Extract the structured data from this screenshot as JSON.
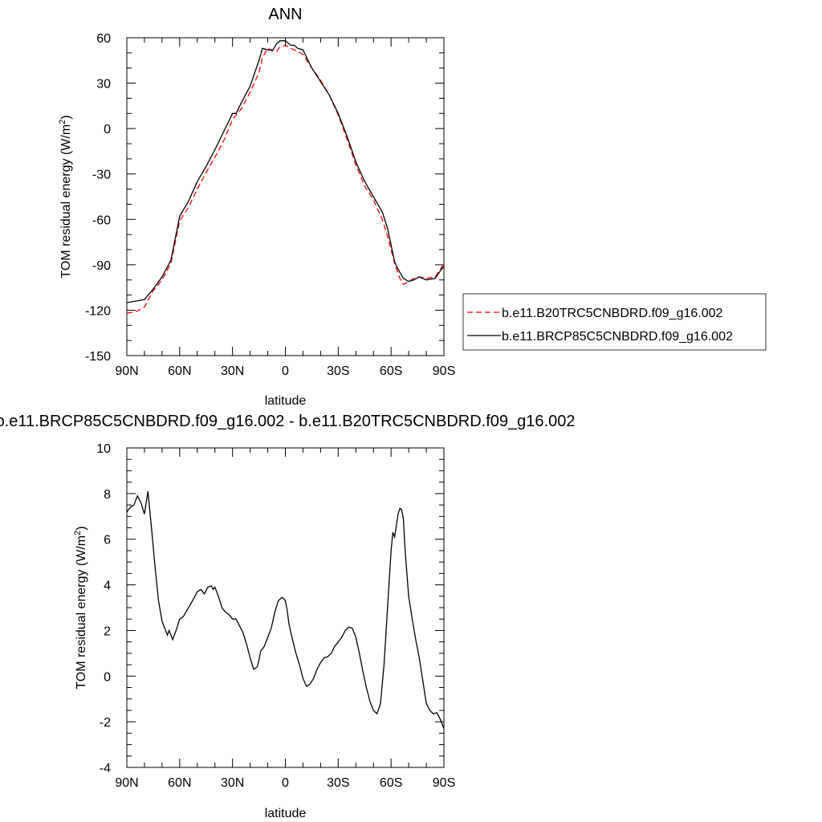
{
  "chart_data": [
    {
      "type": "line",
      "title": "ANN",
      "xlabel": "latitude",
      "ylabel": "TOM residual energy (W/m",
      "ylabel_sup": "2",
      "ylabel_close": ")",
      "xlim": [
        90,
        -90
      ],
      "ylim": [
        -150,
        60
      ],
      "xticks": [
        90,
        60,
        30,
        0,
        -30,
        -60,
        -90
      ],
      "xtick_labels": [
        "90N",
        "60N",
        "30N",
        "0",
        "30S",
        "60S",
        "90S"
      ],
      "yticks": [
        -150,
        -120,
        -90,
        -60,
        -30,
        0,
        30,
        60
      ],
      "ytick_labels": [
        "-150",
        "-120",
        "-90",
        "-60",
        "-30",
        "0",
        "30",
        "60"
      ],
      "legend_position": "right",
      "series": [
        {
          "name": "b.e11.B20TRC5CNBDRD.f09_g16.002",
          "color": "#ff0000",
          "dash": "dashed",
          "x": [
            90,
            85,
            80,
            75,
            70,
            65,
            60,
            55,
            50,
            45,
            40,
            35,
            30,
            25,
            20,
            15,
            13,
            10,
            7,
            5,
            3,
            0,
            -3,
            -5,
            -7,
            -10,
            -15,
            -20,
            -25,
            -30,
            -35,
            -40,
            -45,
            -50,
            -55,
            -58,
            -62,
            -65,
            -67,
            -70,
            -73,
            -76,
            -80,
            -85,
            -88,
            -90
          ],
          "y": [
            -122,
            -121,
            -118,
            -107,
            -100,
            -89,
            -61,
            -52,
            -40,
            -29,
            -19,
            -8,
            6,
            13,
            24,
            37,
            47,
            53,
            51,
            51,
            54,
            55,
            53,
            52,
            51,
            49,
            40,
            32,
            22,
            9,
            -7,
            -24,
            -38,
            -47,
            -60,
            -71,
            -89,
            -99,
            -103,
            -101,
            -99,
            -98,
            -99,
            -98,
            -93,
            -89
          ]
        },
        {
          "name": "b.e11.BRCP85C5CNBDRD.f09_g16.002",
          "color": "#000000",
          "dash": "solid",
          "x": [
            90,
            85,
            80,
            75,
            70,
            65,
            60,
            55,
            50,
            45,
            40,
            35,
            30,
            28,
            25,
            20,
            15,
            13,
            10,
            7,
            5,
            3,
            0,
            -3,
            -5,
            -7,
            -10,
            -15,
            -20,
            -25,
            -30,
            -35,
            -40,
            -45,
            -50,
            -55,
            -58,
            -62,
            -64,
            -67,
            -70,
            -73,
            -76,
            -80,
            -85,
            -88,
            -90
          ],
          "y": [
            -115,
            -114,
            -113,
            -106,
            -98,
            -87,
            -58,
            -48,
            -35,
            -25,
            -14,
            -2,
            10,
            10,
            17,
            28,
            45,
            53,
            52,
            52,
            56,
            58,
            58,
            55,
            55,
            53,
            52,
            40,
            31,
            22,
            10,
            -5,
            -22,
            -35,
            -45,
            -55,
            -66,
            -88,
            -93,
            -99,
            -101,
            -100,
            -98,
            -100,
            -99,
            -94,
            -91
          ]
        }
      ]
    },
    {
      "type": "line",
      "title": "b.e11.BRCP85C5CNBDRD.f09_g16.002 - b.e11.B20TRC5CNBDRD.f09_g16.002",
      "xlabel": "latitude",
      "ylabel": "TOM residual energy (W/m",
      "ylabel_sup": "2",
      "ylabel_close": ")",
      "xlim": [
        90,
        -90
      ],
      "ylim": [
        -4,
        10
      ],
      "xticks": [
        90,
        60,
        30,
        0,
        -30,
        -60,
        -90
      ],
      "xtick_labels": [
        "90N",
        "60N",
        "30N",
        "0",
        "30S",
        "60S",
        "90S"
      ],
      "yticks": [
        -4,
        -2,
        0,
        2,
        4,
        6,
        8,
        10
      ],
      "ytick_labels": [
        "-4",
        "-2",
        "0",
        "2",
        "4",
        "6",
        "8",
        "10"
      ],
      "series": [
        {
          "color": "#000000",
          "dash": "solid",
          "x": [
            90,
            88,
            86,
            84,
            82,
            80,
            78,
            76,
            74,
            72,
            70,
            68,
            67,
            66,
            64,
            62,
            60,
            58,
            55,
            52,
            50,
            48,
            46,
            44,
            42,
            41,
            40,
            38,
            36,
            34,
            32,
            30,
            28,
            26,
            24,
            22,
            20,
            18,
            16,
            15,
            14,
            12,
            10,
            8,
            6,
            4,
            2,
            1,
            0,
            -1,
            -2,
            -4,
            -6,
            -8,
            -10,
            -12,
            -14,
            -16,
            -18,
            -20,
            -22,
            -24,
            -26,
            -28,
            -30,
            -32,
            -34,
            -36,
            -38,
            -40,
            -42,
            -44,
            -46,
            -48,
            -50,
            -52,
            -54,
            -56,
            -58,
            -60,
            -61,
            -62,
            -63,
            -64,
            -65,
            -66,
            -67,
            -68,
            -70,
            -72,
            -74,
            -76,
            -78,
            -80,
            -82,
            -84,
            -86,
            -88,
            -90
          ],
          "y": [
            7.2,
            7.4,
            7.5,
            7.9,
            7.6,
            7.1,
            8.1,
            6.5,
            4.8,
            3.3,
            2.4,
            2.0,
            1.8,
            2.0,
            1.6,
            2.0,
            2.5,
            2.6,
            3.0,
            3.4,
            3.7,
            3.8,
            3.6,
            3.9,
            3.95,
            3.8,
            3.9,
            3.5,
            3.0,
            2.8,
            2.7,
            2.5,
            2.5,
            2.2,
            1.9,
            1.4,
            0.8,
            0.3,
            0.4,
            0.7,
            1.1,
            1.3,
            1.7,
            2.1,
            2.8,
            3.3,
            3.45,
            3.4,
            3.3,
            2.9,
            2.3,
            1.6,
            1.0,
            0.5,
            -0.1,
            -0.45,
            -0.35,
            -0.1,
            0.3,
            0.6,
            0.8,
            0.85,
            1.0,
            1.3,
            1.5,
            1.7,
            2.0,
            2.15,
            2.1,
            1.7,
            1.0,
            0.2,
            -0.5,
            -1.1,
            -1.5,
            -1.65,
            -1.2,
            0.5,
            3.0,
            5.5,
            6.3,
            6.1,
            6.6,
            7.1,
            7.35,
            7.3,
            6.9,
            5.5,
            3.5,
            2.5,
            1.6,
            0.8,
            -0.2,
            -1.2,
            -1.5,
            -1.65,
            -1.6,
            -1.9,
            -2.3
          ]
        }
      ]
    }
  ]
}
